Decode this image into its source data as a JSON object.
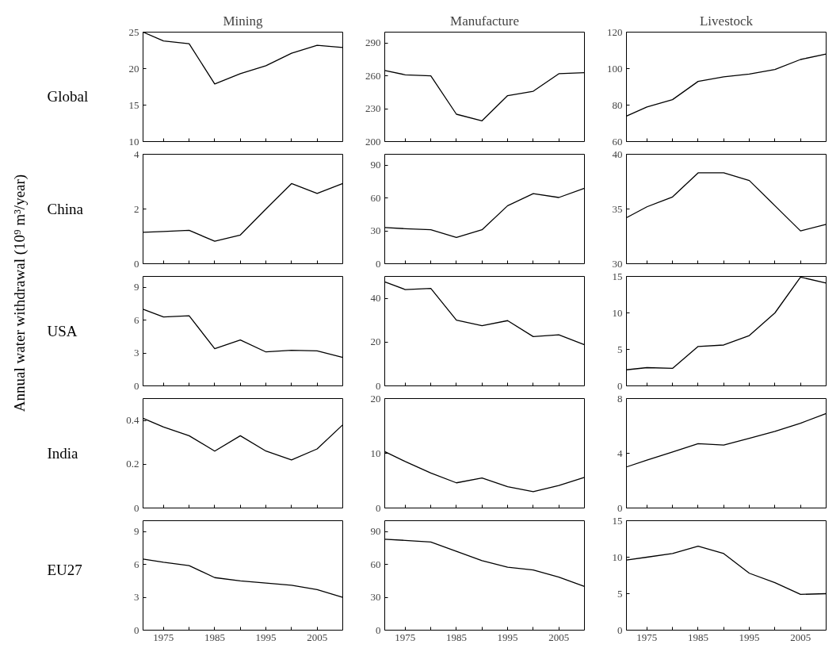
{
  "chart_data": [
    {
      "type": "line",
      "title": "Mining",
      "ylabel": "Global",
      "x": [
        1971,
        1975,
        1980,
        1985,
        1990,
        1995,
        2000,
        2005,
        2010
      ],
      "series": [
        {
          "color": "#000000",
          "values": [
            25,
            23.8,
            23.4,
            17.9,
            19.3,
            20.4,
            22.1,
            23.2,
            22.9
          ]
        }
      ],
      "xlim": [
        1971,
        2010
      ],
      "xticks": [
        {
          "value": 1975,
          "label": null
        },
        {
          "value": 1980,
          "label": null
        },
        {
          "value": 1985,
          "label": null
        },
        {
          "value": 1990,
          "label": null
        },
        {
          "value": 1995,
          "label": null
        },
        {
          "value": 2000,
          "label": null
        },
        {
          "value": 2005,
          "label": null
        }
      ],
      "ylim": [
        10,
        25
      ],
      "yticks": [
        10,
        15,
        20,
        25
      ],
      "tick_labels": "y",
      "grid": false
    },
    {
      "type": "line",
      "title": "Manufacture",
      "x": [
        1971,
        1975,
        1980,
        1985,
        1990,
        1995,
        2000,
        2005,
        2010
      ],
      "series": [
        {
          "color": "#000000",
          "values": [
            265,
            261,
            260,
            225,
            219,
            242,
            246,
            262,
            263
          ]
        }
      ],
      "xlim": [
        1971,
        2010
      ],
      "xticks": [
        {
          "value": 1975,
          "label": null
        },
        {
          "value": 1980,
          "label": null
        },
        {
          "value": 1985,
          "label": null
        },
        {
          "value": 1990,
          "label": null
        },
        {
          "value": 1995,
          "label": null
        },
        {
          "value": 2000,
          "label": null
        },
        {
          "value": 2005,
          "label": null
        }
      ],
      "ylim": [
        200,
        300
      ],
      "yticks": [
        200,
        230,
        260,
        290
      ],
      "tick_labels": "y",
      "grid": false
    },
    {
      "type": "line",
      "title": "Livestock",
      "x": [
        1971,
        1975,
        1980,
        1985,
        1990,
        1995,
        2000,
        2005,
        2010
      ],
      "series": [
        {
          "color": "#000000",
          "values": [
            74,
            79,
            83,
            93,
            95.5,
            97,
            99.5,
            105,
            108
          ]
        }
      ],
      "xlim": [
        1971,
        2010
      ],
      "xticks": [
        {
          "value": 1975,
          "label": null
        },
        {
          "value": 1980,
          "label": null
        },
        {
          "value": 1985,
          "label": null
        },
        {
          "value": 1990,
          "label": null
        },
        {
          "value": 1995,
          "label": null
        },
        {
          "value": 2000,
          "label": null
        },
        {
          "value": 2005,
          "label": null
        }
      ],
      "ylim": [
        60,
        120
      ],
      "yticks": [
        60,
        80,
        100,
        120
      ],
      "tick_labels": "y",
      "grid": false
    },
    {
      "type": "line",
      "ylabel": "China",
      "x": [
        1971,
        1975,
        1980,
        1985,
        1990,
        1995,
        2000,
        2005,
        2010
      ],
      "series": [
        {
          "color": "#000000",
          "values": [
            1.15,
            1.18,
            1.22,
            0.82,
            1.05,
            2.0,
            2.93,
            2.57,
            2.93
          ]
        }
      ],
      "xlim": [
        1971,
        2010
      ],
      "xticks": [
        {
          "value": 1975,
          "label": null
        },
        {
          "value": 1980,
          "label": null
        },
        {
          "value": 1985,
          "label": null
        },
        {
          "value": 1990,
          "label": null
        },
        {
          "value": 1995,
          "label": null
        },
        {
          "value": 2000,
          "label": null
        },
        {
          "value": 2005,
          "label": null
        }
      ],
      "ylim": [
        0,
        4
      ],
      "yticks": [
        0,
        2,
        4
      ],
      "tick_labels": "y",
      "grid": false
    },
    {
      "type": "line",
      "x": [
        1971,
        1975,
        1980,
        1985,
        1990,
        1995,
        2000,
        2005,
        2010
      ],
      "series": [
        {
          "color": "#000000",
          "values": [
            33,
            32,
            31,
            24,
            31,
            53,
            64,
            60.5,
            69
          ]
        }
      ],
      "xlim": [
        1971,
        2010
      ],
      "xticks": [
        {
          "value": 1975,
          "label": null
        },
        {
          "value": 1980,
          "label": null
        },
        {
          "value": 1985,
          "label": null
        },
        {
          "value": 1990,
          "label": null
        },
        {
          "value": 1995,
          "label": null
        },
        {
          "value": 2000,
          "label": null
        },
        {
          "value": 2005,
          "label": null
        }
      ],
      "ylim": [
        0,
        100
      ],
      "yticks": [
        0,
        30,
        60,
        90
      ],
      "tick_labels": "y",
      "grid": false
    },
    {
      "type": "line",
      "x": [
        1971,
        1975,
        1980,
        1985,
        1990,
        1995,
        2000,
        2005,
        2010
      ],
      "series": [
        {
          "color": "#000000",
          "values": [
            34.2,
            35.2,
            36.1,
            38.3,
            38.3,
            37.6,
            35.3,
            33.0,
            33.6
          ]
        }
      ],
      "xlim": [
        1971,
        2010
      ],
      "xticks": [
        {
          "value": 1975,
          "label": null
        },
        {
          "value": 1980,
          "label": null
        },
        {
          "value": 1985,
          "label": null
        },
        {
          "value": 1990,
          "label": null
        },
        {
          "value": 1995,
          "label": null
        },
        {
          "value": 2000,
          "label": null
        },
        {
          "value": 2005,
          "label": null
        }
      ],
      "ylim": [
        30,
        40
      ],
      "yticks": [
        30,
        35,
        40
      ],
      "tick_labels": "y",
      "grid": false
    },
    {
      "type": "line",
      "ylabel": "USA",
      "annotations": [
        "Annual water withdrawal (10⁹ m³/year)"
      ],
      "x": [
        1971,
        1975,
        1980,
        1985,
        1990,
        1995,
        2000,
        2005,
        2010
      ],
      "series": [
        {
          "color": "#000000",
          "values": [
            7.0,
            6.3,
            6.4,
            3.4,
            4.2,
            3.1,
            3.25,
            3.2,
            2.6
          ]
        }
      ],
      "xlim": [
        1971,
        2010
      ],
      "xticks": [
        {
          "value": 1975,
          "label": null
        },
        {
          "value": 1980,
          "label": null
        },
        {
          "value": 1985,
          "label": null
        },
        {
          "value": 1990,
          "label": null
        },
        {
          "value": 1995,
          "label": null
        },
        {
          "value": 2000,
          "label": null
        },
        {
          "value": 2005,
          "label": null
        }
      ],
      "ylim": [
        0,
        10
      ],
      "yticks": [
        0,
        3,
        6,
        9
      ],
      "tick_labels": "y",
      "grid": false
    },
    {
      "type": "line",
      "x": [
        1971,
        1975,
        1980,
        1985,
        1990,
        1995,
        2000,
        2005,
        2010
      ],
      "series": [
        {
          "color": "#000000",
          "values": [
            47.5,
            44,
            44.5,
            30,
            27.5,
            29.8,
            22.5,
            23.3,
            18.8
          ]
        }
      ],
      "xlim": [
        1971,
        2010
      ],
      "xticks": [
        {
          "value": 1975,
          "label": null
        },
        {
          "value": 1980,
          "label": null
        },
        {
          "value": 1985,
          "label": null
        },
        {
          "value": 1990,
          "label": null
        },
        {
          "value": 1995,
          "label": null
        },
        {
          "value": 2000,
          "label": null
        },
        {
          "value": 2005,
          "label": null
        }
      ],
      "ylim": [
        0,
        50
      ],
      "yticks": [
        0,
        20,
        40
      ],
      "tick_labels": "y",
      "grid": false
    },
    {
      "type": "line",
      "x": [
        1971,
        1975,
        1980,
        1985,
        1990,
        1995,
        2000,
        2005,
        2010
      ],
      "series": [
        {
          "color": "#000000",
          "values": [
            2.2,
            2.5,
            2.4,
            5.4,
            5.6,
            6.9,
            10,
            14.9,
            14.1
          ]
        }
      ],
      "xlim": [
        1971,
        2010
      ],
      "xticks": [
        {
          "value": 1975,
          "label": null
        },
        {
          "value": 1980,
          "label": null
        },
        {
          "value": 1985,
          "label": null
        },
        {
          "value": 1990,
          "label": null
        },
        {
          "value": 1995,
          "label": null
        },
        {
          "value": 2000,
          "label": null
        },
        {
          "value": 2005,
          "label": null
        }
      ],
      "ylim": [
        0,
        15
      ],
      "yticks": [
        0,
        5,
        10,
        15
      ],
      "tick_labels": "y",
      "grid": false
    },
    {
      "type": "line",
      "ylabel": "India",
      "x": [
        1971,
        1975,
        1980,
        1985,
        1990,
        1995,
        2000,
        2005,
        2010
      ],
      "series": [
        {
          "color": "#000000",
          "values": [
            0.41,
            0.37,
            0.33,
            0.26,
            0.33,
            0.26,
            0.22,
            0.27,
            0.38
          ]
        }
      ],
      "xlim": [
        1971,
        2010
      ],
      "xticks": [
        {
          "value": 1975,
          "label": null
        },
        {
          "value": 1980,
          "label": null
        },
        {
          "value": 1985,
          "label": null
        },
        {
          "value": 1990,
          "label": null
        },
        {
          "value": 1995,
          "label": null
        },
        {
          "value": 2000,
          "label": null
        },
        {
          "value": 2005,
          "label": null
        }
      ],
      "ylim": [
        0,
        0.5
      ],
      "yticks": [
        0,
        0.2,
        0.4
      ],
      "tick_labels": "y",
      "grid": false
    },
    {
      "type": "line",
      "x": [
        1971,
        1975,
        1980,
        1985,
        1990,
        1995,
        2000,
        2005,
        2010
      ],
      "series": [
        {
          "color": "#000000",
          "values": [
            10.3,
            8.5,
            6.4,
            4.6,
            5.5,
            3.9,
            3.0,
            4.1,
            5.6
          ]
        }
      ],
      "xlim": [
        1971,
        2010
      ],
      "xticks": [
        {
          "value": 1975,
          "label": null
        },
        {
          "value": 1980,
          "label": null
        },
        {
          "value": 1985,
          "label": null
        },
        {
          "value": 1990,
          "label": null
        },
        {
          "value": 1995,
          "label": null
        },
        {
          "value": 2000,
          "label": null
        },
        {
          "value": 2005,
          "label": null
        }
      ],
      "ylim": [
        0,
        20
      ],
      "yticks": [
        0,
        10,
        20
      ],
      "tick_labels": "y",
      "grid": false
    },
    {
      "type": "line",
      "x": [
        1971,
        1975,
        1980,
        1985,
        1990,
        1995,
        2000,
        2005,
        2010
      ],
      "series": [
        {
          "color": "#000000",
          "values": [
            3.0,
            3.5,
            4.1,
            4.7,
            4.6,
            5.1,
            5.6,
            6.2,
            6.9
          ]
        }
      ],
      "xlim": [
        1971,
        2010
      ],
      "xticks": [
        {
          "value": 1975,
          "label": null
        },
        {
          "value": 1980,
          "label": null
        },
        {
          "value": 1985,
          "label": null
        },
        {
          "value": 1990,
          "label": null
        },
        {
          "value": 1995,
          "label": null
        },
        {
          "value": 2000,
          "label": null
        },
        {
          "value": 2005,
          "label": null
        }
      ],
      "ylim": [
        0,
        8
      ],
      "yticks": [
        0,
        4,
        8
      ],
      "tick_labels": "y",
      "grid": false
    },
    {
      "type": "line",
      "ylabel": "EU27",
      "x": [
        1971,
        1975,
        1980,
        1985,
        1990,
        1995,
        2000,
        2005,
        2010
      ],
      "series": [
        {
          "color": "#000000",
          "values": [
            6.5,
            6.2,
            5.9,
            4.8,
            4.5,
            4.3,
            4.1,
            3.7,
            3.0
          ]
        }
      ],
      "xlim": [
        1971,
        2010
      ],
      "xticks": [
        {
          "value": 1975,
          "label": "1975"
        },
        {
          "value": 1980,
          "label": null
        },
        {
          "value": 1985,
          "label": "1985"
        },
        {
          "value": 1990,
          "label": null
        },
        {
          "value": 1995,
          "label": "1995"
        },
        {
          "value": 2000,
          "label": null
        },
        {
          "value": 2005,
          "label": "2005"
        }
      ],
      "ylim": [
        0,
        10
      ],
      "yticks": [
        0,
        3,
        6,
        9
      ],
      "grid": false
    },
    {
      "type": "line",
      "x": [
        1971,
        1975,
        1980,
        1985,
        1990,
        1995,
        2000,
        2005,
        2010
      ],
      "series": [
        {
          "color": "#000000",
          "values": [
            83,
            82,
            80.5,
            72,
            63.5,
            57.5,
            55,
            48.5,
            40
          ]
        }
      ],
      "xlim": [
        1971,
        2010
      ],
      "xticks": [
        {
          "value": 1975,
          "label": "1975"
        },
        {
          "value": 1980,
          "label": null
        },
        {
          "value": 1985,
          "label": "1985"
        },
        {
          "value": 1990,
          "label": null
        },
        {
          "value": 1995,
          "label": "1995"
        },
        {
          "value": 2000,
          "label": null
        },
        {
          "value": 2005,
          "label": "2005"
        }
      ],
      "ylim": [
        0,
        100
      ],
      "yticks": [
        0,
        30,
        60,
        90
      ],
      "grid": false
    },
    {
      "type": "line",
      "x": [
        1971,
        1975,
        1980,
        1985,
        1990,
        1995,
        2000,
        2005,
        2010
      ],
      "series": [
        {
          "color": "#000000",
          "values": [
            9.6,
            10.0,
            10.5,
            11.5,
            10.5,
            7.8,
            6.5,
            4.9,
            5.0
          ]
        }
      ],
      "xlim": [
        1971,
        2010
      ],
      "xticks": [
        {
          "value": 1975,
          "label": "1975"
        },
        {
          "value": 1980,
          "label": null
        },
        {
          "value": 1985,
          "label": "1985"
        },
        {
          "value": 1990,
          "label": null
        },
        {
          "value": 1995,
          "label": "1995"
        },
        {
          "value": 2000,
          "label": null
        },
        {
          "value": 2005,
          "label": "2005"
        }
      ],
      "ylim": [
        0,
        15
      ],
      "yticks": [
        0,
        5,
        10,
        15
      ],
      "grid": false
    }
  ]
}
